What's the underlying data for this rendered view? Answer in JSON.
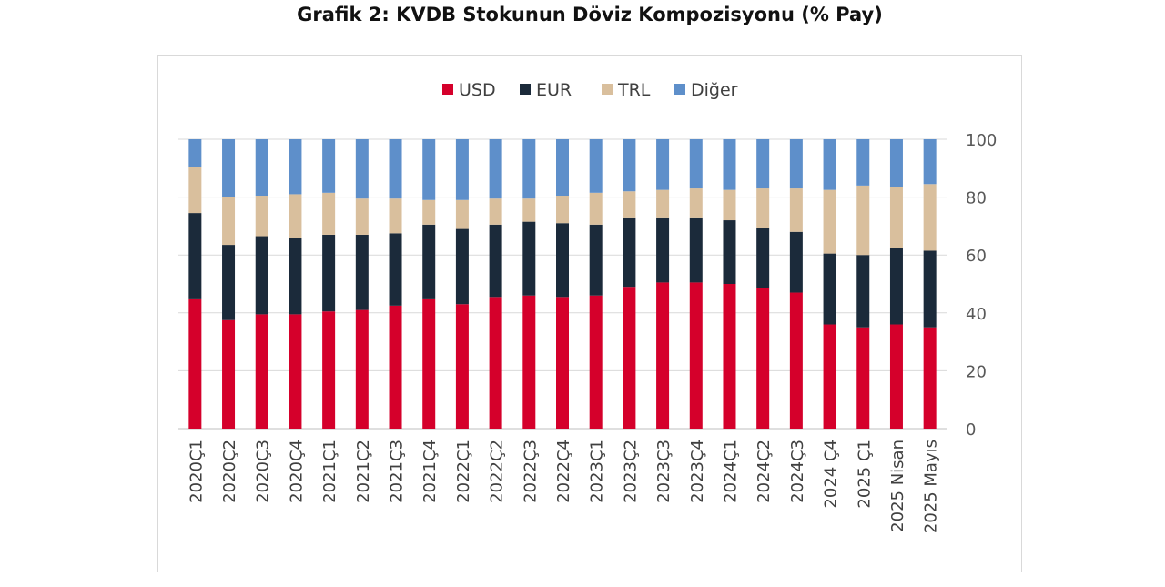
{
  "chart_data": {
    "type": "bar",
    "stacked": true,
    "title": "Grafik 2: KVDB Stokunun Döviz Kompozisyonu (% Pay)",
    "xlabel": "",
    "ylabel": "",
    "ylim": [
      0,
      100
    ],
    "yticks": [
      0,
      20,
      40,
      60,
      80,
      100
    ],
    "y_axis_side": "right",
    "grid": true,
    "legend_position": "top",
    "categories": [
      "2020Ç1",
      "2020Ç2",
      "2020Ç3",
      "2020Ç4",
      "2021Ç1",
      "2021Ç2",
      "2021Ç3",
      "2021Ç4",
      "2022Ç1",
      "2022Ç2",
      "2022Ç3",
      "2022Ç4",
      "2023Ç1",
      "2023Ç2",
      "2023Ç3",
      "2023Ç4",
      "2024Ç1",
      "2024Ç2",
      "2024Ç3",
      "2024 Ç4",
      "2025 Ç1",
      "2025 Nisan",
      "2025 Mayıs"
    ],
    "series": [
      {
        "name": "USD",
        "color": "#d5002b",
        "values": [
          45,
          37.5,
          39.5,
          39.5,
          40.5,
          41,
          42.5,
          45,
          43,
          45.5,
          46,
          45.5,
          46,
          49,
          50.5,
          50.5,
          50,
          48.5,
          47,
          36,
          35,
          36,
          35
        ]
      },
      {
        "name": "EUR",
        "color": "#1b2a3a",
        "values": [
          29.5,
          26,
          27,
          26.5,
          26.5,
          26,
          25,
          25.5,
          26,
          25,
          25.5,
          25.5,
          24.5,
          24,
          22.5,
          22.5,
          22,
          21,
          21,
          24.5,
          25,
          26.5,
          26.5
        ]
      },
      {
        "name": "TRL",
        "color": "#d9bf9d",
        "values": [
          16,
          16.5,
          14,
          15,
          14.5,
          12.5,
          12,
          8.5,
          10,
          9,
          8,
          9.5,
          11,
          9,
          9.5,
          10,
          10.5,
          13.5,
          15,
          22,
          24,
          21,
          23
        ]
      },
      {
        "name": "Diğer",
        "color": "#5e8fca",
        "values": [
          9.5,
          20,
          19.5,
          19,
          18.5,
          20.5,
          20.5,
          21,
          21,
          20.5,
          20.5,
          19.5,
          18.5,
          18,
          17.5,
          17,
          17.5,
          17,
          17,
          17.5,
          16,
          16.5,
          15.5
        ]
      }
    ]
  }
}
